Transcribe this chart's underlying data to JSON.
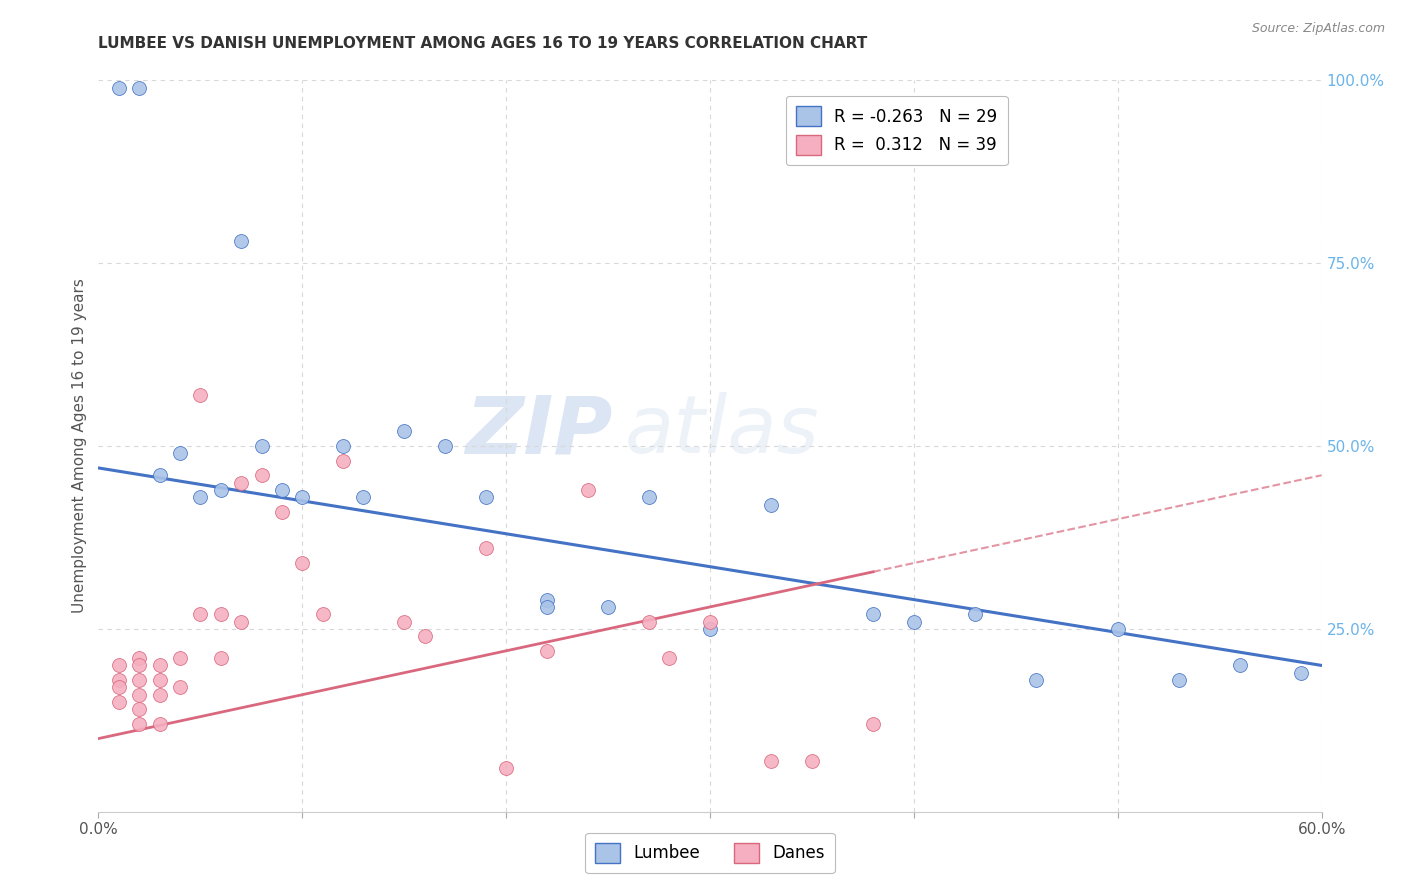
{
  "title": "LUMBEE VS DANISH UNEMPLOYMENT AMONG AGES 16 TO 19 YEARS CORRELATION CHART",
  "source": "Source: ZipAtlas.com",
  "ylabel": "Unemployment Among Ages 16 to 19 years",
  "x_min": 0.0,
  "x_max": 0.6,
  "y_min": 0.0,
  "y_max": 1.0,
  "x_ticks": [
    0.0,
    0.1,
    0.2,
    0.3,
    0.4,
    0.5,
    0.6
  ],
  "x_tick_labels": [
    "0.0%",
    "",
    "",
    "",
    "",
    "",
    "60.0%"
  ],
  "y_tick_labels_right": [
    "100.0%",
    "75.0%",
    "50.0%",
    "25.0%",
    ""
  ],
  "y_ticks_right": [
    1.0,
    0.75,
    0.5,
    0.25,
    0.0
  ],
  "lumbee_color": "#aac4e8",
  "danes_color": "#f5afc0",
  "lumbee_line_color": "#4472c4",
  "danes_line_color": "#d9687e",
  "background_color": "#ffffff",
  "grid_color": "#d8d8d8",
  "legend_lumbee_R": "-0.263",
  "legend_lumbee_N": "29",
  "legend_danes_R": "0.312",
  "legend_danes_N": "39",
  "watermark_zip": "ZIP",
  "watermark_atlas": "atlas",
  "lumbee_x": [
    0.01,
    0.02,
    0.03,
    0.04,
    0.05,
    0.06,
    0.07,
    0.08,
    0.09,
    0.1,
    0.12,
    0.13,
    0.15,
    0.17,
    0.19,
    0.22,
    0.22,
    0.25,
    0.27,
    0.3,
    0.33,
    0.38,
    0.4,
    0.43,
    0.46,
    0.5,
    0.53,
    0.56,
    0.59
  ],
  "lumbee_y": [
    0.99,
    0.99,
    0.46,
    0.49,
    0.43,
    0.44,
    0.78,
    0.5,
    0.44,
    0.43,
    0.5,
    0.43,
    0.52,
    0.5,
    0.43,
    0.29,
    0.28,
    0.28,
    0.43,
    0.25,
    0.42,
    0.27,
    0.26,
    0.27,
    0.18,
    0.25,
    0.18,
    0.2,
    0.19
  ],
  "danes_x": [
    0.01,
    0.01,
    0.01,
    0.01,
    0.02,
    0.02,
    0.02,
    0.02,
    0.02,
    0.02,
    0.03,
    0.03,
    0.03,
    0.03,
    0.04,
    0.04,
    0.05,
    0.05,
    0.06,
    0.06,
    0.07,
    0.07,
    0.08,
    0.09,
    0.1,
    0.11,
    0.12,
    0.15,
    0.16,
    0.19,
    0.2,
    0.22,
    0.24,
    0.27,
    0.28,
    0.3,
    0.33,
    0.35,
    0.38
  ],
  "danes_y": [
    0.2,
    0.18,
    0.17,
    0.15,
    0.21,
    0.2,
    0.18,
    0.16,
    0.14,
    0.12,
    0.2,
    0.18,
    0.16,
    0.12,
    0.21,
    0.17,
    0.57,
    0.27,
    0.27,
    0.21,
    0.45,
    0.26,
    0.46,
    0.41,
    0.34,
    0.27,
    0.48,
    0.26,
    0.24,
    0.36,
    0.06,
    0.22,
    0.44,
    0.26,
    0.21,
    0.26,
    0.07,
    0.07,
    0.12
  ],
  "lumbee_line_x0": 0.0,
  "lumbee_line_y0": 0.47,
  "lumbee_line_x1": 0.6,
  "lumbee_line_y1": 0.2,
  "danes_line_x0": 0.0,
  "danes_line_y0": 0.1,
  "danes_line_x1": 0.6,
  "danes_line_y1": 0.46
}
